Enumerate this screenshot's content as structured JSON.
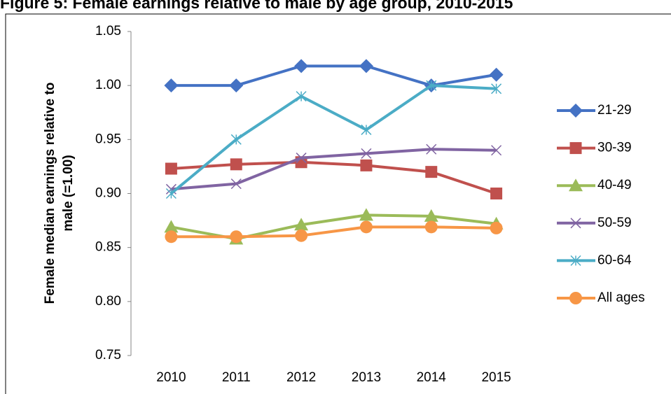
{
  "chart_data": {
    "type": "line",
    "title": "Figure 5: Female earnings relative to male by age group, 2010-2015",
    "ylabel": [
      "Female median earnings relative to",
      "male (=1.00)"
    ],
    "categories": [
      "2010",
      "2011",
      "2012",
      "2013",
      "2014",
      "2015"
    ],
    "series": [
      {
        "name": "21-29",
        "color": "#4472c4",
        "marker": "diamond",
        "values": [
          1.0,
          1.0,
          1.018,
          1.018,
          1.0,
          1.01
        ]
      },
      {
        "name": "30-39",
        "color": "#c0504d",
        "marker": "square",
        "values": [
          0.923,
          0.927,
          0.929,
          0.926,
          0.92,
          0.9
        ]
      },
      {
        "name": "40-49",
        "color": "#9bbb59",
        "marker": "triangle",
        "values": [
          0.869,
          0.858,
          0.871,
          0.88,
          0.879,
          0.872
        ]
      },
      {
        "name": "50-59",
        "color": "#8064a2",
        "marker": "x",
        "values": [
          0.904,
          0.909,
          0.933,
          0.937,
          0.941,
          0.94
        ]
      },
      {
        "name": "60-64",
        "color": "#4bacc6",
        "marker": "star",
        "values": [
          0.9,
          0.95,
          0.99,
          0.959,
          1.0,
          0.997
        ]
      },
      {
        "name": "All ages",
        "color": "#f79646",
        "marker": "circle",
        "values": [
          0.86,
          0.86,
          0.861,
          0.869,
          0.869,
          0.868
        ]
      }
    ],
    "ylim": [
      0.75,
      1.05
    ],
    "yticks": [
      {
        "value": 0.75,
        "label": "0.75"
      },
      {
        "value": 0.8,
        "label": "0.80"
      },
      {
        "value": 0.85,
        "label": "0.85"
      },
      {
        "value": 0.9,
        "label": "0.90"
      },
      {
        "value": 0.95,
        "label": "0.95"
      },
      {
        "value": 1,
        "label": "1.00"
      },
      {
        "value": 1.05,
        "label": "1.05"
      }
    ],
    "grid": false,
    "legend": "right"
  }
}
